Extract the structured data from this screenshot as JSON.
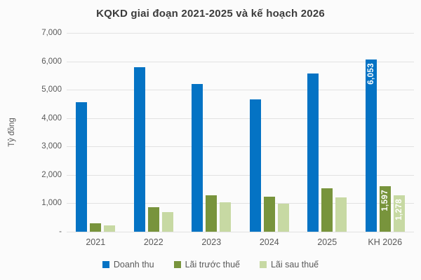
{
  "page": {
    "background": "#FBFBFB",
    "gridline_color": "#E2E2E2",
    "axis_text_color": "#595959",
    "title_color": "#3B3B3B"
  },
  "chart_data": {
    "type": "bar",
    "title": "KQKD giai đoạn 2021-2025 và kế hoạch 2026",
    "ylabel": "Tỷ đồng",
    "xlabel": "",
    "ylim": [
      0,
      7000
    ],
    "grid": true,
    "legend_position": "bottom",
    "y_ticks": [
      {
        "label": "7,000",
        "value": 7000
      },
      {
        "label": "6,000",
        "value": 6000
      },
      {
        "label": "5,000",
        "value": 5000
      },
      {
        "label": "4,000",
        "value": 4000
      },
      {
        "label": "3,000",
        "value": 3000
      },
      {
        "label": "2,000",
        "value": 2000
      },
      {
        "label": "1,000",
        "value": 1000
      },
      {
        "label": "-",
        "value": 0
      }
    ],
    "categories": [
      "2021",
      "2022",
      "2023",
      "2024",
      "2025",
      "KH 2026"
    ],
    "series": [
      {
        "name": "Doanh thu",
        "color": "#0473C4",
        "values": [
          4550,
          5800,
          5200,
          4650,
          5580,
          6053
        ],
        "data_labels": [
          null,
          null,
          null,
          null,
          null,
          "6,053"
        ]
      },
      {
        "name": "Lãi trước thuế",
        "color": "#78943C",
        "values": [
          290,
          860,
          1290,
          1235,
          1520,
          1597
        ],
        "data_labels": [
          null,
          null,
          null,
          null,
          null,
          "1,597"
        ]
      },
      {
        "name": "Lãi sau thuế",
        "color": "#C7D9A3",
        "values": [
          220,
          680,
          1045,
          990,
          1210,
          1278
        ],
        "data_labels": [
          null,
          null,
          null,
          null,
          null,
          "1,278"
        ]
      }
    ]
  }
}
